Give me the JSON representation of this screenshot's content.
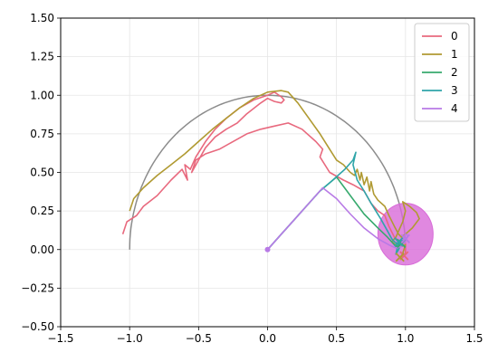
{
  "chart_data": {
    "type": "line",
    "title": "",
    "xlabel": "",
    "ylabel": "",
    "xlim": [
      -1.5,
      1.5
    ],
    "ylim": [
      -0.5,
      1.5
    ],
    "grid": true,
    "legend_position": "top-right",
    "x_ticks": [
      -1.5,
      -1.0,
      -0.5,
      0.0,
      0.5,
      1.0,
      1.5
    ],
    "y_ticks": [
      -0.5,
      -0.25,
      0.0,
      0.25,
      0.5,
      0.75,
      1.0,
      1.25,
      1.5
    ],
    "x_tick_labels": [
      "−1.5",
      "−1.0",
      "−0.5",
      "0.0",
      "0.5",
      "1.0",
      "1.5"
    ],
    "y_tick_labels": [
      "−0.50",
      "−0.25",
      "0.00",
      "0.25",
      "0.50",
      "0.75",
      "1.00",
      "1.25",
      "1.50"
    ],
    "reference_arc": {
      "color": "#8c8c8c",
      "center": [
        0,
        0
      ],
      "radius": 1.0,
      "from_angle_deg": 180,
      "to_angle_deg": 0
    },
    "target_region": {
      "center": [
        1.0,
        0.1
      ],
      "rx": 0.2,
      "ry": 0.2,
      "color": "#d86ad8"
    },
    "start_point": [
      0.0,
      0.0
    ],
    "series": [
      {
        "name": "0",
        "color": "#e8697e",
        "values": [
          [
            -1.05,
            0.1
          ],
          [
            -1.02,
            0.18
          ],
          [
            -0.95,
            0.22
          ],
          [
            -0.9,
            0.28
          ],
          [
            -0.8,
            0.35
          ],
          [
            -0.7,
            0.45
          ],
          [
            -0.62,
            0.52
          ],
          [
            -0.58,
            0.45
          ],
          [
            -0.6,
            0.55
          ],
          [
            -0.56,
            0.52
          ],
          [
            -0.52,
            0.6
          ],
          [
            -0.45,
            0.7
          ],
          [
            -0.38,
            0.78
          ],
          [
            -0.3,
            0.85
          ],
          [
            -0.2,
            0.92
          ],
          [
            -0.1,
            0.97
          ],
          [
            0.0,
            1.0
          ],
          [
            0.05,
            1.02
          ],
          [
            0.1,
            0.99
          ],
          [
            0.12,
            0.97
          ],
          [
            0.1,
            0.95
          ],
          [
            0.05,
            0.96
          ],
          [
            0.0,
            0.98
          ],
          [
            -0.05,
            0.95
          ],
          [
            -0.15,
            0.88
          ],
          [
            -0.22,
            0.82
          ],
          [
            -0.3,
            0.78
          ],
          [
            -0.38,
            0.73
          ],
          [
            -0.45,
            0.66
          ],
          [
            -0.5,
            0.58
          ],
          [
            -0.55,
            0.5
          ],
          [
            -0.52,
            0.58
          ],
          [
            -0.45,
            0.62
          ],
          [
            -0.35,
            0.65
          ],
          [
            -0.25,
            0.7
          ],
          [
            -0.15,
            0.75
          ],
          [
            -0.05,
            0.78
          ],
          [
            0.05,
            0.8
          ],
          [
            0.15,
            0.82
          ],
          [
            0.25,
            0.78
          ],
          [
            0.35,
            0.7
          ],
          [
            0.4,
            0.65
          ],
          [
            0.38,
            0.6
          ],
          [
            0.45,
            0.5
          ],
          [
            0.55,
            0.45
          ],
          [
            0.62,
            0.42
          ],
          [
            0.7,
            0.38
          ],
          [
            0.75,
            0.3
          ],
          [
            0.8,
            0.25
          ],
          [
            0.85,
            0.22
          ],
          [
            0.88,
            0.15
          ],
          [
            0.92,
            0.08
          ],
          [
            0.96,
            0.05
          ],
          [
            1.0,
            0.04
          ],
          [
            1.0,
            -0.03
          ]
        ]
      },
      {
        "name": "1",
        "color": "#b09a32",
        "values": [
          [
            -1.0,
            0.25
          ],
          [
            -0.97,
            0.33
          ],
          [
            -0.9,
            0.4
          ],
          [
            -0.8,
            0.48
          ],
          [
            -0.7,
            0.55
          ],
          [
            -0.6,
            0.62
          ],
          [
            -0.5,
            0.7
          ],
          [
            -0.4,
            0.78
          ],
          [
            -0.3,
            0.85
          ],
          [
            -0.2,
            0.92
          ],
          [
            -0.1,
            0.98
          ],
          [
            0.0,
            1.02
          ],
          [
            0.1,
            1.03
          ],
          [
            0.15,
            1.02
          ],
          [
            0.22,
            0.95
          ],
          [
            0.3,
            0.85
          ],
          [
            0.38,
            0.75
          ],
          [
            0.45,
            0.65
          ],
          [
            0.5,
            0.58
          ],
          [
            0.55,
            0.55
          ],
          [
            0.6,
            0.5
          ],
          [
            0.63,
            0.48
          ],
          [
            0.65,
            0.52
          ],
          [
            0.67,
            0.45
          ],
          [
            0.68,
            0.5
          ],
          [
            0.7,
            0.42
          ],
          [
            0.72,
            0.47
          ],
          [
            0.74,
            0.38
          ],
          [
            0.75,
            0.44
          ],
          [
            0.77,
            0.36
          ],
          [
            0.8,
            0.32
          ],
          [
            0.85,
            0.28
          ],
          [
            0.88,
            0.22
          ],
          [
            0.92,
            0.15
          ],
          [
            0.95,
            0.1
          ],
          [
            0.97,
            0.08
          ],
          [
            1.0,
            0.1
          ],
          [
            1.05,
            0.14
          ],
          [
            1.1,
            0.2
          ],
          [
            1.08,
            0.24
          ],
          [
            1.03,
            0.28
          ],
          [
            0.98,
            0.31
          ],
          [
            1.0,
            0.25
          ],
          [
            0.98,
            0.18
          ],
          [
            0.95,
            0.12
          ],
          [
            0.93,
            0.08
          ],
          [
            0.9,
            0.05
          ],
          [
            0.93,
            0.03
          ],
          [
            0.97,
            0.02
          ],
          [
            1.0,
            0.03
          ],
          [
            0.97,
            -0.05
          ]
        ]
      },
      {
        "name": "2",
        "color": "#38aa6e",
        "values": [
          [
            0.0,
            0.0
          ],
          [
            0.08,
            0.08
          ],
          [
            0.18,
            0.18
          ],
          [
            0.28,
            0.28
          ],
          [
            0.38,
            0.38
          ],
          [
            0.5,
            0.47
          ],
          [
            0.6,
            0.35
          ],
          [
            0.7,
            0.23
          ],
          [
            0.8,
            0.14
          ],
          [
            0.87,
            0.08
          ],
          [
            0.9,
            0.05
          ],
          [
            0.93,
            0.02
          ],
          [
            0.95,
            0.03
          ],
          [
            0.96,
            0.05
          ],
          [
            0.94,
            0.06
          ],
          [
            0.97,
            0.03
          ],
          [
            0.98,
            0.04
          ]
        ]
      },
      {
        "name": "3",
        "color": "#2fa5a9",
        "values": [
          [
            0.0,
            0.0
          ],
          [
            0.1,
            0.1
          ],
          [
            0.2,
            0.2
          ],
          [
            0.3,
            0.3
          ],
          [
            0.38,
            0.38
          ],
          [
            0.46,
            0.44
          ],
          [
            0.56,
            0.52
          ],
          [
            0.62,
            0.58
          ],
          [
            0.64,
            0.63
          ],
          [
            0.62,
            0.55
          ],
          [
            0.65,
            0.45
          ],
          [
            0.7,
            0.38
          ],
          [
            0.75,
            0.3
          ],
          [
            0.82,
            0.2
          ],
          [
            0.87,
            0.12
          ],
          [
            0.9,
            0.07
          ],
          [
            0.92,
            0.05
          ],
          [
            0.94,
            0.04
          ],
          [
            0.96,
            0.02
          ],
          [
            0.95,
            0.0
          ],
          [
            0.93,
            -0.03
          ],
          [
            0.95,
            0.05
          ],
          [
            0.98,
            0.06
          ],
          [
            1.0,
            0.05
          ]
        ]
      },
      {
        "name": "4",
        "color": "#b87ae6",
        "values": [
          [
            0.0,
            0.0
          ],
          [
            0.1,
            0.1
          ],
          [
            0.2,
            0.2
          ],
          [
            0.3,
            0.3
          ],
          [
            0.4,
            0.4
          ],
          [
            0.5,
            0.33
          ],
          [
            0.6,
            0.23
          ],
          [
            0.7,
            0.14
          ],
          [
            0.8,
            0.07
          ],
          [
            0.88,
            0.03
          ],
          [
            0.93,
            0.01
          ],
          [
            0.97,
            0.02
          ],
          [
            1.0,
            0.06
          ],
          [
            1.02,
            0.09
          ],
          [
            1.0,
            0.1
          ],
          [
            0.98,
            0.07
          ],
          [
            1.0,
            0.04
          ]
        ]
      }
    ],
    "end_markers": [
      {
        "series": "0",
        "x": 0.99,
        "y": -0.04
      },
      {
        "series": "1",
        "x": 0.96,
        "y": -0.05
      },
      {
        "series": "2",
        "x": 0.97,
        "y": 0.04
      },
      {
        "series": "3",
        "x": 0.95,
        "y": 0.05
      },
      {
        "series": "4",
        "x": 1.0,
        "y": 0.07
      }
    ]
  }
}
